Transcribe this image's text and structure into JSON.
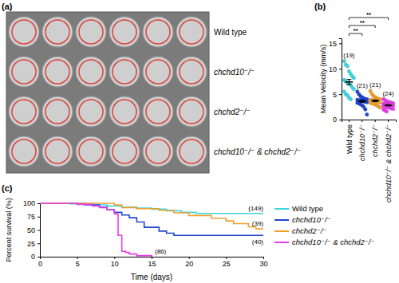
{
  "chart_data": [
    {
      "type": "plate",
      "title": "(a)",
      "categories": [
        "Wild type",
        "chchd10⁻/⁻",
        "chchd2⁻/⁻",
        "chchd10⁻/⁻ & chchd2⁻/⁻"
      ]
    },
    {
      "type": "dot",
      "title": "(b)",
      "y_label": "Mean Velocity (mm/s)",
      "categories": [
        "Wild type",
        "chchd10⁻/⁻",
        "chchd2⁻/⁻",
        "chchd10⁻/⁻ & chchd2⁻/⁻"
      ],
      "colors": [
        "#3fd6e0",
        "#2046d0",
        "#f0a030",
        "#e83ee8"
      ],
      "points": [
        [
          11.5,
          10.8,
          10.5,
          9.5,
          9.0,
          8.5,
          8.2,
          7.8,
          7.5,
          7.2,
          7.0,
          6.8,
          6.3,
          6.0,
          5.5,
          5.0,
          4.8,
          4.3,
          4.0
        ],
        [
          5.5,
          5.0,
          4.6,
          4.4,
          4.2,
          4.0,
          4.0,
          3.9,
          3.8,
          3.8,
          3.7,
          3.6,
          3.5,
          3.4,
          3.3,
          3.2,
          3.0,
          2.8,
          2.5,
          2.0,
          1.0
        ],
        [
          5.6,
          5.0,
          4.6,
          4.4,
          4.2,
          4.1,
          4.0,
          3.9,
          3.8,
          3.7,
          3.7,
          3.6,
          3.5,
          3.4,
          3.3,
          3.2,
          3.1,
          3.0,
          2.8,
          2.6,
          2.4
        ],
        [
          4.0,
          3.8,
          3.6,
          3.5,
          3.4,
          3.3,
          3.2,
          3.1,
          3.0,
          3.0,
          2.9,
          2.9,
          2.8,
          2.8,
          2.7,
          2.6,
          2.5,
          2.4,
          2.3,
          2.2,
          2.1,
          2.0,
          1.8,
          1.6
        ]
      ],
      "means": [
        7.4,
        3.6,
        3.7,
        2.8
      ],
      "errors": [
        0.5,
        0.22,
        0.17,
        0.12
      ],
      "annotations": [
        "(19)",
        "(21)",
        "(21)",
        "(24)"
      ],
      "significance": [
        {
          "from": 0,
          "to": 1,
          "label": "**"
        },
        {
          "from": 0,
          "to": 2,
          "label": "**"
        },
        {
          "from": 0,
          "to": 3,
          "label": "**"
        }
      ],
      "ylim": [
        0,
        16
      ],
      "yticks": [
        0,
        5,
        10,
        15
      ]
    },
    {
      "type": "line",
      "title": "(c)",
      "x_label": "Time (days)",
      "y_label": "Percent survival (%)",
      "xlim": [
        0,
        30
      ],
      "xticks": [
        0,
        5,
        10,
        15,
        20,
        25,
        30
      ],
      "ylim": [
        0,
        100
      ],
      "yticks": [
        0,
        25,
        50,
        75,
        100
      ],
      "legend": "right",
      "series": [
        {
          "name": "Wild type",
          "color": "#3fd6e0",
          "x": [
            0,
            4,
            7,
            9,
            11,
            13,
            15,
            17,
            19,
            21,
            30
          ],
          "values": [
            100,
            99,
            97,
            95,
            93,
            91,
            89,
            86,
            83,
            81,
            81
          ]
        },
        {
          "name": "chchd10⁻/⁻",
          "color": "#2046d0",
          "x": [
            0,
            6,
            8,
            9,
            10,
            11,
            12,
            13,
            14,
            16,
            17,
            18,
            30
          ],
          "values": [
            100,
            97,
            93,
            88,
            83,
            78,
            73,
            65,
            55,
            48,
            44,
            40,
            40
          ]
        },
        {
          "name": "chchd2⁻/⁻",
          "color": "#f0a030",
          "x": [
            0,
            10,
            11,
            13,
            16,
            18,
            20,
            23,
            25,
            26,
            28,
            29,
            30
          ],
          "values": [
            100,
            97,
            92,
            90,
            87,
            82,
            77,
            72,
            67,
            62,
            56,
            52,
            52
          ]
        },
        {
          "name": "chchd10⁻/⁻ & chchd2⁻/⁻",
          "color": "#e83ee8",
          "x": [
            0,
            5,
            7,
            8,
            9,
            10,
            10.5,
            11,
            11.5,
            12,
            13,
            15
          ],
          "values": [
            100,
            98,
            95,
            92,
            88,
            80,
            40,
            10,
            8,
            5,
            2,
            0
          ]
        }
      ],
      "annotations": [
        "(149)",
        "(40)",
        "(39)",
        "(86)"
      ]
    }
  ]
}
